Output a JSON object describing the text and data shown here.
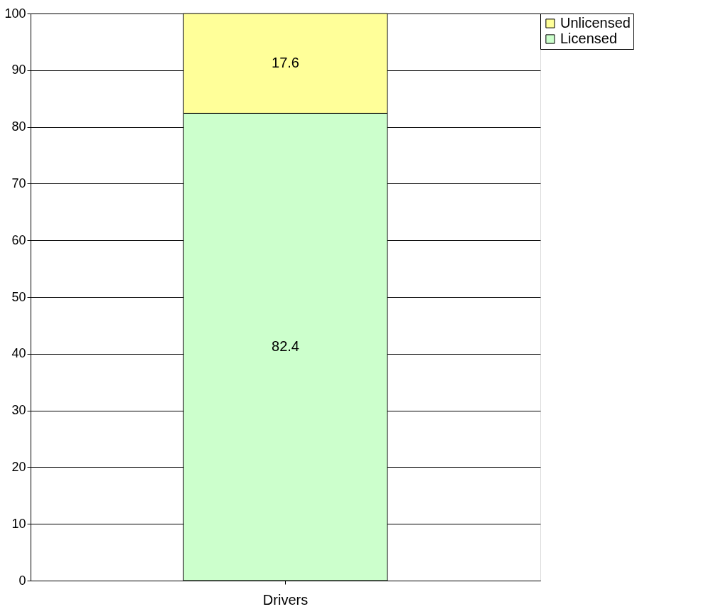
{
  "chart_data": {
    "type": "bar",
    "stacked": true,
    "categories": [
      "Drivers"
    ],
    "series": [
      {
        "name": "Licensed",
        "color": "#ccffcc",
        "values": [
          82.4
        ]
      },
      {
        "name": "Unlicensed",
        "color": "#ffff99",
        "values": [
          17.6
        ]
      }
    ],
    "ylim": [
      0,
      100
    ],
    "yticks": [
      0,
      10,
      20,
      30,
      40,
      50,
      60,
      70,
      80,
      90,
      100
    ],
    "grid": "y",
    "legend": "right",
    "data_labels": true
  }
}
